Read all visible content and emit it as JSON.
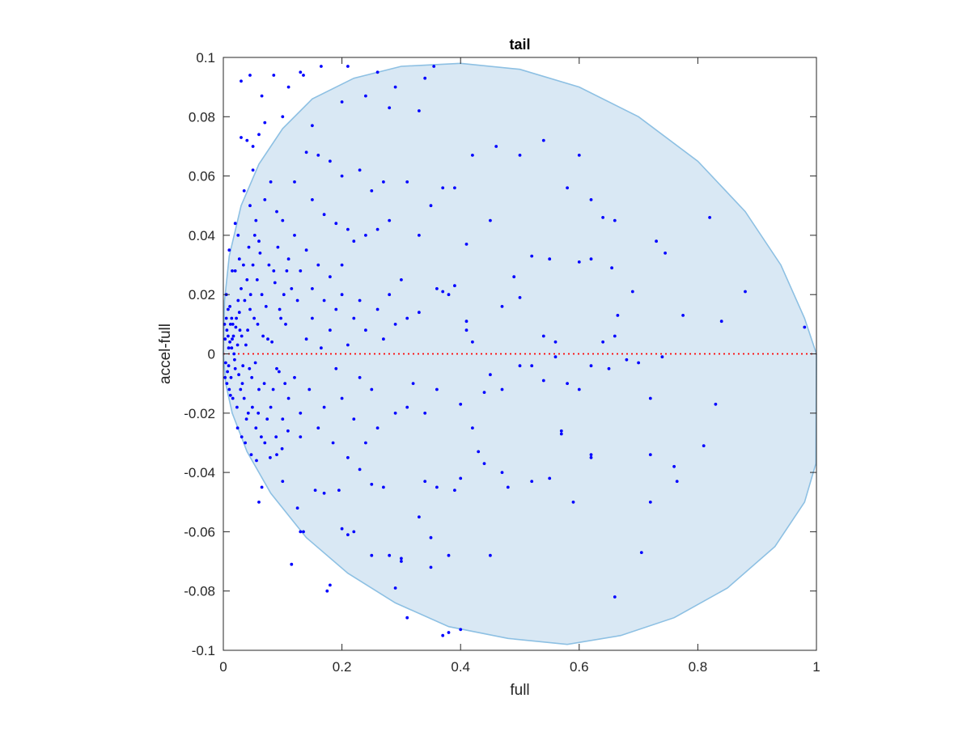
{
  "chart_data": {
    "type": "scatter",
    "title": "tail",
    "xlabel": "full",
    "ylabel": "accel-full",
    "xlim": [
      0,
      1
    ],
    "ylim": [
      -0.1,
      0.1
    ],
    "x_ticks": [
      {
        "value": 0,
        "label": "0"
      },
      {
        "value": 0.2,
        "label": "0.2"
      },
      {
        "value": 0.4,
        "label": "0.4"
      },
      {
        "value": 0.6,
        "label": "0.6"
      },
      {
        "value": 0.8,
        "label": "0.8"
      },
      {
        "value": 1,
        "label": "1"
      }
    ],
    "y_ticks": [
      {
        "value": 0.1,
        "label": "0.1"
      },
      {
        "value": 0.08,
        "label": "0.08"
      },
      {
        "value": 0.06,
        "label": "0.06"
      },
      {
        "value": 0.04,
        "label": "0.04"
      },
      {
        "value": 0.02,
        "label": "0.02"
      },
      {
        "value": 0,
        "label": "0"
      },
      {
        "value": -0.02,
        "label": "-0.02"
      },
      {
        "value": -0.04,
        "label": "-0.04"
      },
      {
        "value": -0.06,
        "label": "-0.06"
      },
      {
        "value": -0.08,
        "label": "-0.08"
      },
      {
        "value": -0.1,
        "label": "-0.1"
      }
    ],
    "grid": false,
    "legend": "none",
    "colors": {
      "points": "#0000ff",
      "region_fill": "#d9e8f4",
      "region_edge": "#8dc0e3",
      "reference_line": "#ff0000",
      "axes": "#262626"
    },
    "reference_line": {
      "y": 0,
      "style": "dotted"
    },
    "boundary": [
      [
        0,
        0.0
      ],
      [
        0.002,
        0.018
      ],
      [
        0.01,
        0.033
      ],
      [
        0.03,
        0.05
      ],
      [
        0.06,
        0.064
      ],
      [
        0.1,
        0.076
      ],
      [
        0.15,
        0.086
      ],
      [
        0.22,
        0.093
      ],
      [
        0.3,
        0.097
      ],
      [
        0.4,
        0.098
      ],
      [
        0.5,
        0.096
      ],
      [
        0.6,
        0.09
      ],
      [
        0.7,
        0.08
      ],
      [
        0.8,
        0.065
      ],
      [
        0.88,
        0.048
      ],
      [
        0.94,
        0.03
      ],
      [
        0.98,
        0.012
      ],
      [
        1.0,
        0.0
      ],
      [
        0.999,
        -0.037
      ],
      [
        0.98,
        -0.05
      ],
      [
        0.93,
        -0.065
      ],
      [
        0.85,
        -0.079
      ],
      [
        0.76,
        -0.089
      ],
      [
        0.67,
        -0.095
      ],
      [
        0.58,
        -0.098
      ],
      [
        0.48,
        -0.096
      ],
      [
        0.38,
        -0.092
      ],
      [
        0.29,
        -0.084
      ],
      [
        0.21,
        -0.074
      ],
      [
        0.14,
        -0.062
      ],
      [
        0.08,
        -0.047
      ],
      [
        0.04,
        -0.033
      ],
      [
        0.015,
        -0.02
      ],
      [
        0.004,
        -0.01
      ],
      [
        0,
        0.0
      ]
    ],
    "points": [
      [
        0.03,
        0.092
      ],
      [
        0.045,
        0.094
      ],
      [
        0.065,
        0.087
      ],
      [
        0.085,
        0.094
      ],
      [
        0.11,
        0.09
      ],
      [
        0.13,
        0.095
      ],
      [
        0.135,
        0.094
      ],
      [
        0.165,
        0.097
      ],
      [
        0.21,
        0.097
      ],
      [
        0.26,
        0.095
      ],
      [
        0.05,
        0.07
      ],
      [
        0.07,
        0.078
      ],
      [
        0.1,
        0.08
      ],
      [
        0.03,
        0.073
      ],
      [
        0.04,
        0.072
      ],
      [
        0.06,
        0.074
      ],
      [
        0.2,
        0.085
      ],
      [
        0.29,
        0.09
      ],
      [
        0.33,
        0.082
      ],
      [
        0.34,
        0.093
      ],
      [
        0.355,
        0.097
      ],
      [
        0.24,
        0.087
      ],
      [
        0.28,
        0.083
      ],
      [
        0.15,
        0.077
      ],
      [
        0.42,
        0.067
      ],
      [
        0.46,
        0.07
      ],
      [
        0.5,
        0.067
      ],
      [
        0.54,
        0.072
      ],
      [
        0.6,
        0.067
      ],
      [
        0.37,
        0.056
      ],
      [
        0.39,
        0.056
      ],
      [
        0.41,
        0.037
      ],
      [
        0.45,
        0.045
      ],
      [
        0.33,
        0.04
      ],
      [
        0.31,
        0.058
      ],
      [
        0.35,
        0.05
      ],
      [
        0.52,
        0.033
      ],
      [
        0.55,
        0.032
      ],
      [
        0.58,
        0.056
      ],
      [
        0.62,
        0.052
      ],
      [
        0.64,
        0.046
      ],
      [
        0.66,
        0.045
      ],
      [
        0.6,
        0.031
      ],
      [
        0.62,
        0.032
      ],
      [
        0.73,
        0.038
      ],
      [
        0.745,
        0.034
      ],
      [
        0.82,
        0.046
      ],
      [
        0.88,
        0.021
      ],
      [
        0.84,
        0.011
      ],
      [
        0.98,
        0.009
      ],
      [
        0.775,
        0.013
      ],
      [
        0.69,
        0.021
      ],
      [
        0.665,
        0.013
      ],
      [
        0.655,
        0.029
      ],
      [
        0.49,
        0.026
      ],
      [
        0.5,
        0.019
      ],
      [
        0.47,
        0.016
      ],
      [
        0.41,
        0.008
      ],
      [
        0.38,
        0.02
      ],
      [
        0.54,
        0.006
      ],
      [
        0.56,
        0.004
      ],
      [
        0.64,
        0.004
      ],
      [
        0.66,
        0.006
      ],
      [
        0.56,
        -0.001
      ],
      [
        0.72,
        -0.015
      ],
      [
        0.72,
        -0.034
      ],
      [
        0.76,
        -0.038
      ],
      [
        0.765,
        -0.043
      ],
      [
        0.81,
        -0.031
      ],
      [
        0.83,
        -0.017
      ],
      [
        0.72,
        -0.05
      ],
      [
        0.705,
        -0.067
      ],
      [
        0.66,
        -0.082
      ],
      [
        0.62,
        -0.034
      ],
      [
        0.62,
        -0.035
      ],
      [
        0.59,
        -0.05
      ],
      [
        0.57,
        -0.026
      ],
      [
        0.57,
        -0.027
      ],
      [
        0.55,
        -0.042
      ],
      [
        0.52,
        -0.043
      ],
      [
        0.48,
        -0.045
      ],
      [
        0.47,
        -0.04
      ],
      [
        0.45,
        -0.068
      ],
      [
        0.4,
        -0.093
      ],
      [
        0.38,
        -0.094
      ],
      [
        0.37,
        -0.095
      ],
      [
        0.35,
        -0.072
      ],
      [
        0.31,
        -0.089
      ],
      [
        0.29,
        -0.079
      ],
      [
        0.3,
        -0.07
      ],
      [
        0.3,
        -0.069
      ],
      [
        0.25,
        -0.068
      ],
      [
        0.28,
        -0.068
      ],
      [
        0.38,
        -0.068
      ],
      [
        0.35,
        -0.062
      ],
      [
        0.33,
        -0.055
      ],
      [
        0.34,
        -0.043
      ],
      [
        0.36,
        -0.045
      ],
      [
        0.39,
        -0.046
      ],
      [
        0.4,
        -0.042
      ],
      [
        0.43,
        -0.033
      ],
      [
        0.44,
        -0.037
      ],
      [
        0.2,
        -0.059
      ],
      [
        0.21,
        -0.061
      ],
      [
        0.22,
        -0.06
      ],
      [
        0.18,
        -0.078
      ],
      [
        0.175,
        -0.08
      ],
      [
        0.115,
        -0.071
      ],
      [
        0.125,
        -0.052
      ],
      [
        0.13,
        -0.06
      ],
      [
        0.135,
        -0.06
      ],
      [
        0.06,
        -0.05
      ],
      [
        0.065,
        -0.045
      ],
      [
        0.1,
        -0.043
      ],
      [
        0.09,
        -0.034
      ],
      [
        0.13,
        -0.028
      ],
      [
        0.155,
        -0.046
      ],
      [
        0.17,
        -0.047
      ],
      [
        0.195,
        -0.046
      ],
      [
        0.25,
        -0.044
      ],
      [
        0.27,
        -0.045
      ],
      [
        0.23,
        -0.039
      ],
      [
        0.21,
        -0.035
      ],
      [
        0.26,
        -0.025
      ],
      [
        0.29,
        -0.02
      ],
      [
        0.31,
        -0.018
      ],
      [
        0.34,
        -0.02
      ],
      [
        0.32,
        -0.01
      ],
      [
        0.36,
        -0.012
      ],
      [
        0.4,
        -0.017
      ],
      [
        0.42,
        -0.025
      ],
      [
        0.44,
        -0.013
      ],
      [
        0.45,
        -0.007
      ],
      [
        0.47,
        -0.012
      ],
      [
        0.5,
        -0.004
      ],
      [
        0.52,
        -0.004
      ],
      [
        0.54,
        -0.009
      ],
      [
        0.58,
        -0.01
      ],
      [
        0.6,
        -0.012
      ],
      [
        0.62,
        -0.004
      ],
      [
        0.65,
        -0.005
      ],
      [
        0.68,
        -0.002
      ],
      [
        0.7,
        -0.003
      ],
      [
        0.74,
        -0.001
      ],
      [
        0.29,
        0.01
      ],
      [
        0.31,
        0.012
      ],
      [
        0.33,
        0.014
      ],
      [
        0.36,
        0.022
      ],
      [
        0.37,
        0.021
      ],
      [
        0.39,
        0.023
      ],
      [
        0.41,
        0.011
      ],
      [
        0.42,
        0.004
      ],
      [
        0.2,
        0.03
      ],
      [
        0.22,
        0.038
      ],
      [
        0.24,
        0.04
      ],
      [
        0.26,
        0.042
      ],
      [
        0.28,
        0.045
      ],
      [
        0.25,
        0.055
      ],
      [
        0.27,
        0.058
      ],
      [
        0.23,
        0.062
      ],
      [
        0.2,
        0.06
      ],
      [
        0.18,
        0.065
      ],
      [
        0.16,
        0.067
      ],
      [
        0.14,
        0.068
      ],
      [
        0.12,
        0.058
      ],
      [
        0.15,
        0.052
      ],
      [
        0.17,
        0.047
      ],
      [
        0.19,
        0.044
      ],
      [
        0.21,
        0.042
      ],
      [
        0.01,
        0.035
      ],
      [
        0.015,
        0.028
      ],
      [
        0.02,
        0.044
      ],
      [
        0.025,
        0.04
      ],
      [
        0.035,
        0.055
      ],
      [
        0.045,
        0.05
      ],
      [
        0.05,
        0.062
      ],
      [
        0.055,
        0.045
      ],
      [
        0.06,
        0.038
      ],
      [
        0.07,
        0.052
      ],
      [
        0.08,
        0.058
      ],
      [
        0.09,
        0.048
      ],
      [
        0.1,
        0.045
      ],
      [
        0.11,
        0.032
      ],
      [
        0.12,
        0.04
      ],
      [
        0.13,
        0.028
      ],
      [
        0.14,
        0.035
      ],
      [
        0.15,
        0.022
      ],
      [
        0.16,
        0.03
      ],
      [
        0.17,
        0.018
      ],
      [
        0.18,
        0.026
      ],
      [
        0.19,
        0.015
      ],
      [
        0.2,
        0.02
      ],
      [
        0.22,
        0.012
      ],
      [
        0.23,
        0.018
      ],
      [
        0.24,
        0.008
      ],
      [
        0.26,
        0.015
      ],
      [
        0.27,
        0.005
      ],
      [
        0.28,
        0.02
      ],
      [
        0.3,
        0.025
      ],
      [
        0.005,
        0.02
      ],
      [
        0.008,
        0.015
      ],
      [
        0.012,
        0.01
      ],
      [
        0.015,
        0.005
      ],
      [
        0.018,
        0.0
      ],
      [
        0.02,
        -0.005
      ],
      [
        0.022,
        0.012
      ],
      [
        0.025,
        0.018
      ],
      [
        0.028,
        0.008
      ],
      [
        0.03,
        0.022
      ],
      [
        0.032,
        -0.01
      ],
      [
        0.035,
        -0.015
      ],
      [
        0.038,
        0.003
      ],
      [
        0.04,
        0.025
      ],
      [
        0.042,
        -0.02
      ],
      [
        0.045,
        0.015
      ],
      [
        0.048,
        -0.008
      ],
      [
        0.05,
        0.03
      ],
      [
        0.055,
        -0.025
      ],
      [
        0.058,
        0.01
      ],
      [
        0.06,
        -0.012
      ],
      [
        0.065,
        0.02
      ],
      [
        0.07,
        -0.03
      ],
      [
        0.075,
        0.005
      ],
      [
        0.08,
        -0.018
      ],
      [
        0.085,
        0.028
      ],
      [
        0.09,
        -0.005
      ],
      [
        0.095,
        0.015
      ],
      [
        0.1,
        -0.022
      ],
      [
        0.105,
        0.01
      ],
      [
        0.11,
        -0.015
      ],
      [
        0.115,
        0.022
      ],
      [
        0.12,
        -0.008
      ],
      [
        0.125,
        0.018
      ],
      [
        0.13,
        -0.02
      ],
      [
        0.14,
        0.005
      ],
      [
        0.145,
        -0.012
      ],
      [
        0.15,
        0.012
      ],
      [
        0.16,
        -0.025
      ],
      [
        0.165,
        0.002
      ],
      [
        0.17,
        -0.018
      ],
      [
        0.18,
        0.008
      ],
      [
        0.185,
        -0.03
      ],
      [
        0.19,
        -0.005
      ],
      [
        0.2,
        -0.015
      ],
      [
        0.21,
        0.003
      ],
      [
        0.22,
        -0.022
      ],
      [
        0.23,
        -0.008
      ],
      [
        0.24,
        -0.03
      ],
      [
        0.25,
        -0.012
      ],
      [
        0.003,
        0.005
      ],
      [
        0.004,
        -0.003
      ],
      [
        0.006,
        0.008
      ],
      [
        0.007,
        -0.006
      ],
      [
        0.009,
        0.002
      ],
      [
        0.01,
        -0.012
      ],
      [
        0.011,
        0.004
      ],
      [
        0.013,
        -0.008
      ],
      [
        0.014,
        0.012
      ],
      [
        0.016,
        -0.015
      ],
      [
        0.017,
        0.006
      ],
      [
        0.019,
        -0.002
      ],
      [
        0.021,
        0.009
      ],
      [
        0.023,
        -0.018
      ],
      [
        0.024,
        0.003
      ],
      [
        0.026,
        -0.007
      ],
      [
        0.027,
        0.014
      ],
      [
        0.029,
        -0.012
      ],
      [
        0.031,
        0.006
      ],
      [
        0.033,
        -0.004
      ],
      [
        0.002,
        0.01
      ],
      [
        0.003,
        -0.008
      ],
      [
        0.005,
        0.012
      ],
      [
        0.006,
        -0.01
      ],
      [
        0.008,
        0.006
      ],
      [
        0.009,
        -0.004
      ],
      [
        0.011,
        0.016
      ],
      [
        0.012,
        -0.014
      ],
      [
        0.014,
        0.002
      ],
      [
        0.016,
        0.01
      ],
      [
        0.036,
        0.018
      ],
      [
        0.039,
        -0.022
      ],
      [
        0.041,
        0.008
      ],
      [
        0.044,
        -0.005
      ],
      [
        0.046,
        0.02
      ],
      [
        0.049,
        -0.018
      ],
      [
        0.052,
        0.012
      ],
      [
        0.054,
        -0.003
      ],
      [
        0.057,
        0.025
      ],
      [
        0.059,
        -0.02
      ],
      [
        0.062,
        0.034
      ],
      [
        0.064,
        -0.028
      ],
      [
        0.067,
        0.006
      ],
      [
        0.069,
        -0.01
      ],
      [
        0.072,
        0.016
      ],
      [
        0.074,
        -0.022
      ],
      [
        0.077,
        0.03
      ],
      [
        0.079,
        -0.035
      ],
      [
        0.082,
        0.004
      ],
      [
        0.084,
        -0.012
      ],
      [
        0.087,
        0.024
      ],
      [
        0.089,
        -0.028
      ],
      [
        0.092,
        0.036
      ],
      [
        0.094,
        -0.006
      ],
      [
        0.097,
        0.012
      ],
      [
        0.099,
        -0.032
      ],
      [
        0.102,
        0.02
      ],
      [
        0.104,
        -0.01
      ],
      [
        0.107,
        0.028
      ],
      [
        0.109,
        -0.026
      ],
      [
        0.02,
        0.028
      ],
      [
        0.024,
        -0.025
      ],
      [
        0.027,
        0.032
      ],
      [
        0.031,
        -0.028
      ],
      [
        0.034,
        0.03
      ],
      [
        0.037,
        -0.03
      ],
      [
        0.043,
        0.036
      ],
      [
        0.047,
        -0.034
      ],
      [
        0.053,
        0.04
      ],
      [
        0.056,
        -0.036
      ]
    ]
  }
}
